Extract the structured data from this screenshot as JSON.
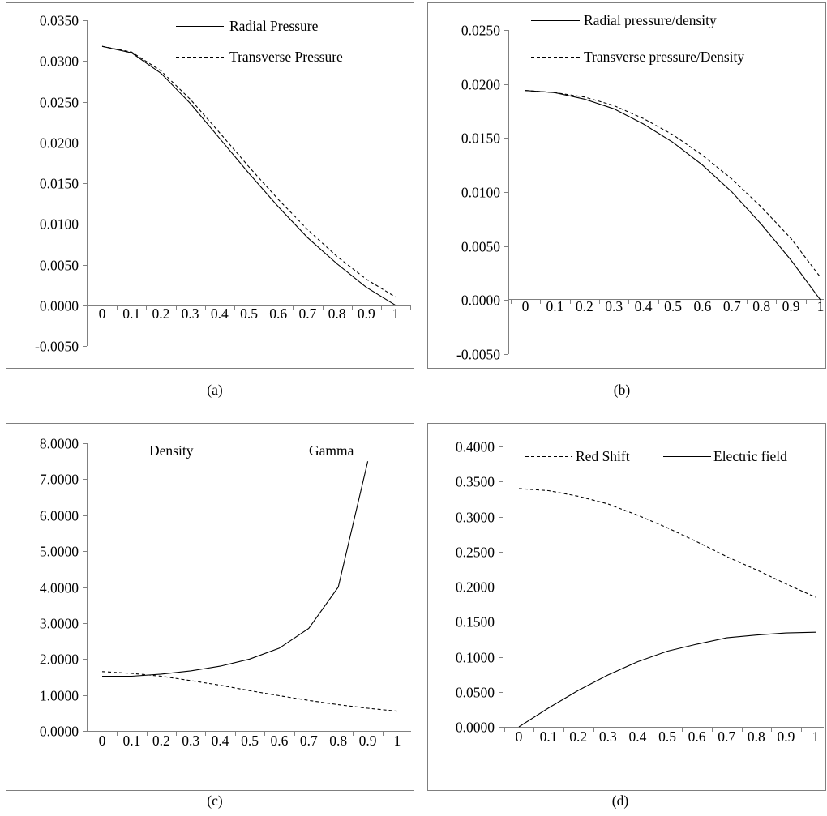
{
  "figure": {
    "panels": [
      "a",
      "b",
      "c",
      "d"
    ]
  },
  "chart_data": [
    {
      "panel": "a",
      "caption": "(a)",
      "type": "line",
      "x": [
        0,
        0.1,
        0.2,
        0.3,
        0.4,
        0.5,
        0.6,
        0.7,
        0.8,
        0.9,
        1
      ],
      "x_tick_labels": [
        "0",
        "0.1",
        "0.2",
        "0.3",
        "0.4",
        "0.5",
        "0.6",
        "0.7",
        "0.8",
        "0.9",
        "1"
      ],
      "ylim": [
        -0.005,
        0.035
      ],
      "y_ticks": [
        -0.005,
        0,
        0.005,
        0.01,
        0.015,
        0.02,
        0.025,
        0.03,
        0.035
      ],
      "y_tick_labels": [
        "-0.0050",
        "0.0000",
        "0.0050",
        "0.0100",
        "0.0150",
        "0.0200",
        "0.0250",
        "0.0300",
        "0.0350"
      ],
      "legend_position": "top-right",
      "series": [
        {
          "name": "Radial Pressure",
          "style": "solid",
          "values": [
            0.0318,
            0.031,
            0.0285,
            0.0248,
            0.0205,
            0.0162,
            0.0121,
            0.0083,
            0.0051,
            0.0022,
            0.0
          ]
        },
        {
          "name": "Transverse Pressure",
          "style": "dashed",
          "values": [
            0.0318,
            0.0311,
            0.0288,
            0.0253,
            0.0212,
            0.017,
            0.013,
            0.0093,
            0.006,
            0.0032,
            0.001
          ]
        }
      ]
    },
    {
      "panel": "b",
      "caption": "(b)",
      "type": "line",
      "x": [
        0,
        0.1,
        0.2,
        0.3,
        0.4,
        0.5,
        0.6,
        0.7,
        0.8,
        0.9,
        1
      ],
      "x_tick_labels": [
        "0",
        "0.1",
        "0.2",
        "0.3",
        "0.4",
        "0.5",
        "0.6",
        "0.7",
        "0.8",
        "0.9",
        "1"
      ],
      "ylim": [
        -0.005,
        0.025
      ],
      "y_ticks": [
        -0.005,
        0,
        0.005,
        0.01,
        0.015,
        0.02,
        0.025
      ],
      "y_tick_labels": [
        "-0.0050",
        "0.0000",
        "0.0050",
        "0.0100",
        "0.0150",
        "0.0200",
        "0.0250"
      ],
      "legend_position": "top",
      "series": [
        {
          "name": "Radial pressure/density",
          "style": "solid",
          "values": [
            0.0194,
            0.0192,
            0.0186,
            0.0177,
            0.0163,
            0.0146,
            0.0125,
            0.01,
            0.007,
            0.0037,
            0.0
          ]
        },
        {
          "name": "Transverse pressure/Density",
          "style": "dashed",
          "values": [
            0.0194,
            0.0192,
            0.0188,
            0.018,
            0.0168,
            0.0153,
            0.0134,
            0.0112,
            0.0086,
            0.0057,
            0.0021
          ]
        }
      ]
    },
    {
      "panel": "c",
      "caption": "(c)",
      "type": "line",
      "x": [
        0,
        0.1,
        0.2,
        0.3,
        0.4,
        0.5,
        0.6,
        0.7,
        0.8,
        0.9,
        1
      ],
      "x_tick_labels": [
        "0",
        "0.1",
        "0.2",
        "0.3",
        "0.4",
        "0.5",
        "0.6",
        "0.7",
        "0.8",
        "0.9",
        "1"
      ],
      "ylim": [
        0,
        8
      ],
      "y_ticks": [
        0,
        1,
        2,
        3,
        4,
        5,
        6,
        7,
        8
      ],
      "y_tick_labels": [
        "0.0000",
        "1.0000",
        "2.0000",
        "3.0000",
        "4.0000",
        "5.0000",
        "6.0000",
        "7.0000",
        "8.0000"
      ],
      "legend_position": "top",
      "series": [
        {
          "name": "Density",
          "style": "dashed",
          "values": [
            1.65,
            1.6,
            1.52,
            1.4,
            1.27,
            1.12,
            0.98,
            0.85,
            0.73,
            0.63,
            0.55
          ]
        },
        {
          "name": "Gamma",
          "style": "solid",
          "values": [
            1.52,
            1.52,
            1.58,
            1.67,
            1.8,
            2.0,
            2.3,
            2.85,
            4.0,
            7.5,
            null
          ]
        }
      ]
    },
    {
      "panel": "d",
      "caption": "(d)",
      "type": "line",
      "x": [
        0,
        0.1,
        0.2,
        0.3,
        0.4,
        0.5,
        0.6,
        0.7,
        0.8,
        0.9,
        1
      ],
      "x_tick_labels": [
        "0",
        "0.1",
        "0.2",
        "0.3",
        "0.4",
        "0.5",
        "0.6",
        "0.7",
        "0.8",
        "0.9",
        "1"
      ],
      "ylim": [
        0,
        0.4
      ],
      "y_ticks": [
        0,
        0.05,
        0.1,
        0.15,
        0.2,
        0.25,
        0.3,
        0.35,
        0.4
      ],
      "y_tick_labels": [
        "0.0000",
        "0.0500",
        "0.1000",
        "0.1500",
        "0.2000",
        "0.2500",
        "0.3000",
        "0.3500",
        "0.4000"
      ],
      "legend_position": "top",
      "series": [
        {
          "name": "Red Shift",
          "style": "dashed",
          "values": [
            0.34,
            0.337,
            0.329,
            0.318,
            0.302,
            0.284,
            0.264,
            0.243,
            0.224,
            0.204,
            0.185
          ]
        },
        {
          "name": "Electric field",
          "style": "solid",
          "values": [
            0.0,
            0.027,
            0.052,
            0.074,
            0.093,
            0.108,
            0.118,
            0.127,
            0.131,
            0.134,
            0.135
          ]
        }
      ]
    }
  ]
}
